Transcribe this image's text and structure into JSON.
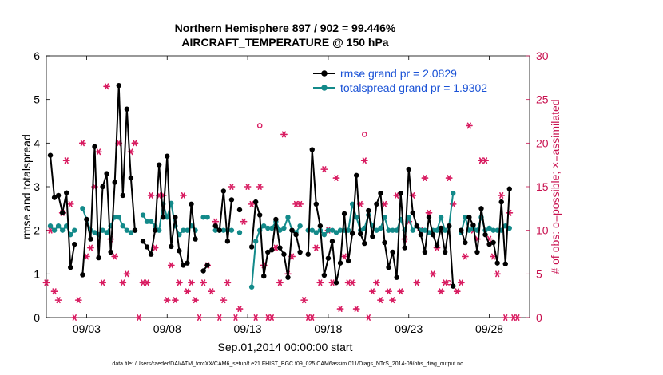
{
  "chart_data": {
    "type": "line",
    "title_line1": "Northern Hemisphere 897 / 902 = 99.446%",
    "title_line2": "AIRCRAFT_TEMPERATURE @ 150 hPa",
    "ylabel": "rmse and totalspread",
    "ylabel_right": "# of obs: o=possible; ×=assimilated",
    "xlabel": "Sep.01,2014 00:00:00 start",
    "footnote": "data file: /Users/raeder/DAI/ATM_forcXX/CAM6_setup/f.e21.FHIST_BGC.f09_025.CAM6assim.011/Diags_NTrS_2014-09/obs_diag_output.nc",
    "ylim": [
      0,
      6
    ],
    "ylim_right": [
      0,
      30
    ],
    "xlim": [
      0.5,
      30.5
    ],
    "yticks": [
      "0",
      "1",
      "2",
      "3",
      "4",
      "5",
      "6"
    ],
    "yticks_right": [
      "0",
      "5",
      "10",
      "15",
      "20",
      "25",
      "30"
    ],
    "xticks": [
      {
        "at": 3,
        "label": "09/03"
      },
      {
        "at": 8,
        "label": "09/08"
      },
      {
        "at": 13,
        "label": "09/13"
      },
      {
        "at": 18,
        "label": "09/18"
      },
      {
        "at": 23,
        "label": "09/23"
      },
      {
        "at": 28,
        "label": "09/28"
      }
    ],
    "colors": {
      "rmse": "#000000",
      "spread": "#138a8a",
      "obs": "#d81b60",
      "legend_text": "#1a52d6"
    },
    "series": [
      {
        "name": "rmse grand pr = 2.0829",
        "start": 0.75,
        "step": 0.25,
        "values": [
          3.72,
          2.75,
          2.8,
          2.4,
          2.86,
          1.15,
          1.68,
          null,
          0.98,
          2.25,
          1.8,
          3.92,
          1.37,
          3.0,
          3.3,
          1.5,
          3.1,
          5.32,
          2.8,
          4.78,
          3.2,
          2.0,
          null,
          1.75,
          1.62,
          1.45,
          2.0,
          3.5,
          2.3,
          3.7,
          1.63,
          2.3,
          1.53,
          1.2,
          1.25,
          2.6,
          1.8,
          null,
          1.07,
          1.2,
          null,
          2.1,
          2.0,
          2.9,
          1.75,
          2.7,
          null,
          2.47,
          null,
          null,
          1.62,
          2.65,
          2.35,
          0.95,
          1.5,
          1.55,
          2.25,
          1.6,
          1.45,
          0.92,
          2.0,
          1.9,
          1.5,
          null,
          1.45,
          3.85,
          2.6,
          2.1,
          0.97,
          1.36,
          1.75,
          0.8,
          1.25,
          2.38,
          1.3,
          1.93,
          3.26,
          1.92,
          1.7,
          2.45,
          1.86,
          2.6,
          2.85,
          1.72,
          1.15,
          1.5,
          0.92,
          2.85,
          1.6,
          3.4,
          2.4,
          2.1,
          1.9,
          1.5,
          2.3,
          1.9,
          1.65,
          2.05,
          1.5,
          2.1,
          0.72,
          null,
          2.0,
          1.72,
          2.3,
          2.12,
          1.5,
          2.5,
          1.9,
          1.68,
          1.72,
          1.25,
          2.65,
          1.23,
          2.95
        ]
      },
      {
        "name": "totalspread grand pr = 1.9302",
        "start": 0.75,
        "step": 0.25,
        "values": [
          2.1,
          2.0,
          2.1,
          2.0,
          2.1,
          1.9,
          2.0,
          null,
          2.5,
          2.25,
          2.0,
          1.95,
          1.9,
          2.0,
          1.95,
          2.1,
          2.3,
          2.3,
          2.1,
          2.0,
          1.95,
          2.0,
          null,
          2.35,
          2.2,
          2.2,
          2.1,
          2.0,
          2.6,
          2.3,
          2.62,
          2.1,
          1.9,
          2.0,
          2.0,
          2.1,
          2.0,
          null,
          2.3,
          2.3,
          null,
          2.0,
          2.0,
          2.0,
          2.0,
          2.0,
          null,
          1.95,
          null,
          null,
          0.7,
          1.75,
          2.0,
          2.1,
          2.05,
          2.05,
          2.2,
          2.0,
          2.05,
          2.3,
          2.0,
          1.95,
          2.1,
          null,
          2.0,
          2.0,
          1.95,
          2.0,
          1.9,
          2.0,
          2.0,
          1.95,
          2.0,
          2.0,
          2.0,
          2.6,
          2.3,
          2.0,
          2.05,
          2.35,
          2.1,
          2.0,
          2.05,
          2.3,
          2.0,
          2.0,
          2.0,
          2.25,
          2.0,
          2.3,
          2.0,
          2.1,
          2.0,
          2.0,
          1.95,
          2.0,
          2.0,
          2.3,
          2.0,
          2.1,
          2.85,
          null,
          1.95,
          2.3,
          2.0,
          2.05,
          2.0,
          2.3,
          2.0,
          2.05,
          2.0,
          2.0,
          2.0,
          2.1,
          2.05
        ]
      }
    ],
    "obs_assimilated": {
      "start": 0.5,
      "step": 0.25,
      "values": [
        4,
        10,
        3,
        2,
        12,
        18,
        13,
        0,
        2,
        20,
        7,
        8,
        15,
        19,
        4,
        26.5,
        9,
        7,
        20,
        4,
        5,
        19,
        20,
        0,
        4,
        4,
        14,
        8,
        14,
        14,
        2,
        6,
        2,
        4,
        14,
        3,
        4,
        2,
        0,
        4,
        6,
        3,
        11,
        0,
        2,
        4,
        15,
        0,
        1,
        11,
        15,
        13,
        0,
        15,
        6,
        0,
        0,
        8,
        4,
        21,
        5,
        7,
        13,
        13,
        2,
        0,
        0,
        8,
        4,
        17,
        10,
        4,
        16,
        1,
        7,
        4,
        4,
        1,
        13,
        18,
        0,
        3,
        4,
        2,
        13,
        3,
        2,
        14,
        3,
        9,
        11,
        14,
        4,
        10,
        16,
        12,
        5,
        8,
        3,
        4,
        16,
        13,
        3,
        4,
        7,
        22,
        10,
        9,
        18,
        18,
        9,
        7,
        5,
        14,
        0,
        12,
        0,
        0
      ]
    },
    "obs_possible": [
      {
        "x": 13.75,
        "y": 22
      },
      {
        "x": 20.25,
        "y": 21
      },
      {
        "x": 25.5,
        "y": 4
      }
    ]
  }
}
